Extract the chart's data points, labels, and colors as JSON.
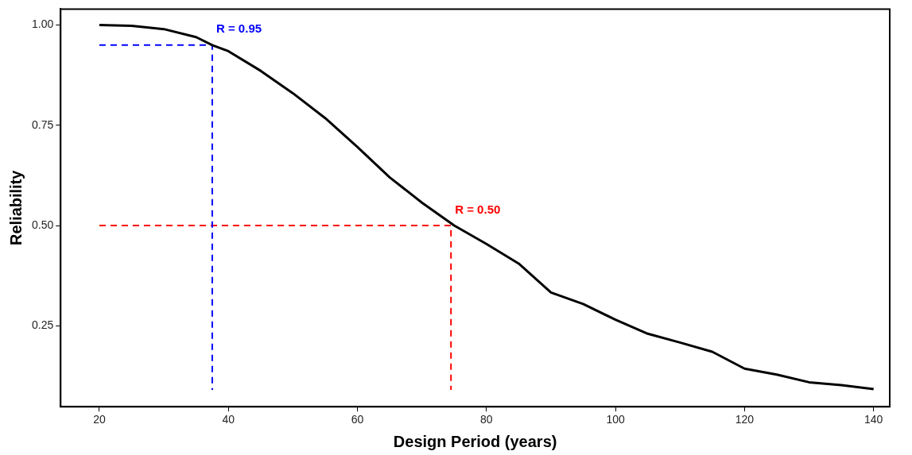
{
  "chart_data": {
    "type": "line",
    "xlabel": "Design Period (years)",
    "ylabel": "Reliability",
    "xlim": [
      14,
      142.5
    ],
    "ylim": [
      0.048,
      1.04
    ],
    "xticks": [
      20,
      40,
      60,
      80,
      100,
      120,
      140
    ],
    "yticks": [
      {
        "value": 0.25,
        "label": "0.25"
      },
      {
        "value": 0.5,
        "label": "0.50"
      },
      {
        "value": 0.75,
        "label": "0.75"
      },
      {
        "value": 1,
        "label": "1.00"
      }
    ],
    "grid": false,
    "legend": false,
    "marker": "none",
    "series": [
      {
        "color": "#000000",
        "line_style": "solid",
        "x": [
          20,
          25,
          30,
          35,
          37.5,
          40,
          45,
          50,
          55,
          60,
          65,
          70,
          75,
          80,
          85,
          90,
          95,
          100,
          105,
          110,
          115,
          120,
          125,
          130,
          135,
          140
        ],
        "values": [
          1.0,
          0.998,
          0.99,
          0.97,
          0.95,
          0.935,
          0.886,
          0.83,
          0.768,
          0.696,
          0.62,
          0.557,
          0.5,
          0.454,
          0.405,
          0.333,
          0.304,
          0.265,
          0.23,
          0.208,
          0.185,
          0.143,
          0.128,
          0.109,
          0.102,
          0.092
        ]
      },
      {
        "color": "#0000ff",
        "line_style": "dashed",
        "x": [
          20,
          37.5,
          37.5
        ],
        "values": [
          0.95,
          0.95,
          0.09
        ]
      },
      {
        "color": "#ff0000",
        "line_style": "dashed",
        "x": [
          20,
          74.5,
          74.5
        ],
        "values": [
          0.5,
          0.5,
          0.09
        ]
      }
    ],
    "annotations": [
      {
        "text": "R = 0.95",
        "x": 37.5,
        "y": 0.95
      },
      {
        "text": "R = 0.50",
        "x": 74.5,
        "y": 0.5
      }
    ]
  }
}
